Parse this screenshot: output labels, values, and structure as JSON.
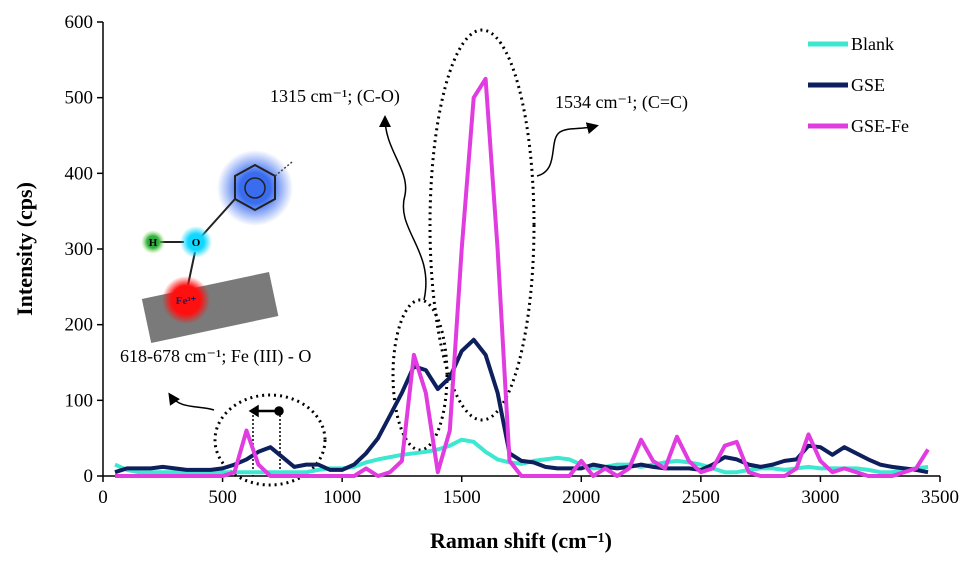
{
  "chart_data": {
    "type": "line",
    "x_label": "Raman shift (cm⁻¹)",
    "y_label": "Intensity (cps)",
    "x": [
      50,
      100,
      150,
      200,
      250,
      300,
      350,
      400,
      450,
      500,
      550,
      600,
      650,
      700,
      750,
      800,
      850,
      900,
      950,
      1000,
      1050,
      1100,
      1150,
      1200,
      1250,
      1300,
      1350,
      1400,
      1450,
      1500,
      1550,
      1600,
      1650,
      1700,
      1750,
      1800,
      1850,
      1900,
      1950,
      2000,
      2050,
      2100,
      2150,
      2200,
      2250,
      2300,
      2350,
      2400,
      2450,
      2500,
      2550,
      2600,
      2650,
      2700,
      2750,
      2800,
      2850,
      2900,
      2950,
      3000,
      3050,
      3100,
      3150,
      3200,
      3250,
      3300,
      3350,
      3400,
      3450
    ],
    "series": [
      {
        "name": "Blank",
        "color": "#3ee8d0",
        "values": [
          15,
          8,
          5,
          5,
          5,
          5,
          5,
          5,
          5,
          5,
          5,
          5,
          5,
          5,
          5,
          5,
          5,
          8,
          10,
          10,
          12,
          18,
          22,
          25,
          28,
          30,
          32,
          35,
          40,
          48,
          45,
          32,
          22,
          18,
          16,
          20,
          22,
          24,
          22,
          15,
          10,
          12,
          15,
          15,
          12,
          15,
          18,
          20,
          18,
          15,
          10,
          5,
          5,
          8,
          10,
          10,
          8,
          10,
          12,
          10,
          10,
          10,
          10,
          8,
          5,
          5,
          8,
          10,
          12
        ]
      },
      {
        "name": "GSE",
        "color": "#0d1f5c",
        "values": [
          5,
          10,
          10,
          10,
          12,
          10,
          8,
          8,
          8,
          10,
          15,
          22,
          32,
          38,
          25,
          12,
          15,
          15,
          8,
          8,
          15,
          30,
          50,
          80,
          110,
          145,
          140,
          115,
          130,
          165,
          180,
          160,
          110,
          30,
          20,
          18,
          12,
          10,
          10,
          10,
          15,
          12,
          10,
          12,
          15,
          12,
          10,
          10,
          10,
          8,
          15,
          25,
          22,
          15,
          12,
          15,
          20,
          22,
          40,
          38,
          28,
          38,
          30,
          22,
          15,
          12,
          10,
          8,
          5
        ]
      },
      {
        "name": "GSE-Fe",
        "color": "#e03ce0",
        "values": [
          0,
          0,
          0,
          0,
          0,
          0,
          0,
          0,
          0,
          0,
          5,
          60,
          15,
          0,
          0,
          0,
          0,
          0,
          0,
          0,
          0,
          10,
          0,
          5,
          20,
          160,
          110,
          5,
          60,
          300,
          500,
          525,
          300,
          20,
          0,
          0,
          0,
          0,
          0,
          20,
          0,
          10,
          0,
          10,
          48,
          20,
          10,
          52,
          20,
          5,
          10,
          40,
          45,
          5,
          0,
          0,
          0,
          10,
          55,
          20,
          5,
          10,
          5,
          0,
          0,
          0,
          5,
          10,
          35
        ]
      }
    ],
    "xlim": [
      0,
      3500
    ],
    "xticks": [
      0,
      500,
      1000,
      1500,
      2000,
      2500,
      3000,
      3500
    ],
    "ylim": [
      0,
      600
    ],
    "yticks": [
      0,
      100,
      200,
      300,
      400,
      500,
      600
    ],
    "grid": false,
    "legend": "top-right",
    "annotations": [
      "1315 cm⁻¹; (C-O)",
      "1534 cm⁻¹; (C=C)",
      "618-678 cm⁻¹; Fe (III) - O"
    ],
    "diagram_labels": [
      "H",
      "O",
      "Fe³⁺"
    ]
  }
}
